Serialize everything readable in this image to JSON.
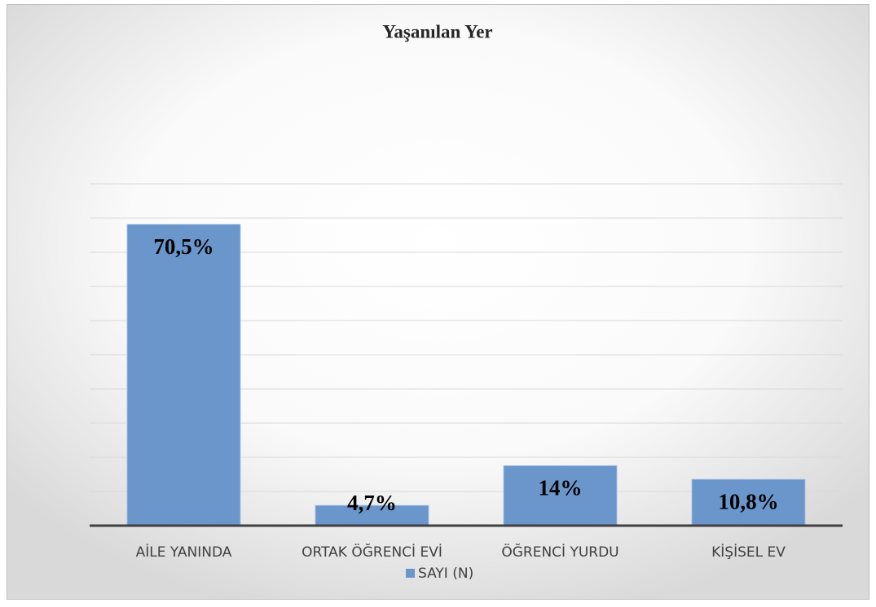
{
  "chart_data": {
    "type": "bar",
    "title": "Yaşanılan Yer",
    "categories": [
      "AİLE YANINDA",
      "ORTAK ÖĞRENCİ EVİ",
      "ÖĞRENCİ YURDU",
      "KİŞİSEL EV"
    ],
    "series": [
      {
        "name": "SAYI (N)",
        "color": "#6a96cb",
        "values": [
          70.5,
          4.7,
          14,
          10.8
        ],
        "value_labels": [
          "70,5%",
          "4,7%",
          "14%",
          "10,8%"
        ]
      }
    ],
    "ylim": [
      0,
      80
    ],
    "yticks": [
      0,
      8,
      16,
      24,
      32,
      40,
      48,
      56,
      64,
      72,
      80
    ],
    "grid": true,
    "legend": "bottom"
  }
}
